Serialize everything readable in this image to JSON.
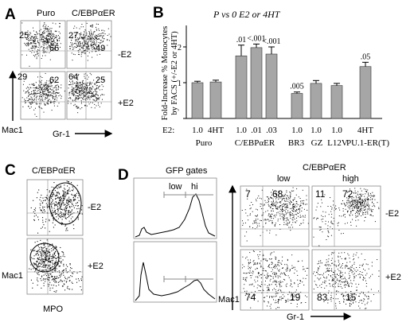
{
  "panels": {
    "A": {
      "letter": "A",
      "col_labels": [
        "Puro",
        "C/EBPαER"
      ],
      "row_labels": [
        "-E2",
        "+E2"
      ],
      "x_axis_label": "Gr-1",
      "y_axis_label": "Mac1",
      "quadrant_values": [
        {
          "tl": "25",
          "tr": "66"
        },
        {
          "tl": "27",
          "tr": "49"
        },
        {
          "tl": "29",
          "tr": "62"
        },
        {
          "tl": "64",
          "tr": "25"
        }
      ]
    },
    "B": {
      "letter": "B",
      "annotation": "P vs 0 E2 or 4HT",
      "ylabel_line1": "Fold-Increase % Monocytes",
      "ylabel_line2": "by FACS (+/-E2 or 4HT)",
      "row_label": "E2:",
      "group_labels": [
        "Puro",
        "C/EBPαER",
        "BR3",
        "GZ",
        "L12V",
        "PU.1-ER(T)"
      ]
    },
    "C": {
      "letter": "C",
      "title": "C/EBPαER",
      "row_labels": [
        "-E2",
        "+E2"
      ],
      "x_axis_label": "MPO",
      "y_axis_label": "Mac1"
    },
    "D": {
      "letter": "D",
      "gfp_title": "GFP gates",
      "gate_low": "low",
      "gate_hi": "hi",
      "scatter_title": "C/EBPαER",
      "col_labels": [
        "low",
        "high"
      ],
      "row_labels": [
        "-E2",
        "+E2"
      ],
      "x_axis_label": "Gr-1",
      "y_axis_label": "Mac1",
      "quadrant_values": [
        {
          "tl": "7",
          "tr": "68"
        },
        {
          "tl": "11",
          "tr": "72"
        },
        {
          "tl": "74",
          "tr": "19"
        },
        {
          "tl": "83",
          "tr": "15"
        }
      ]
    }
  },
  "chart_data": [
    {
      "type": "bar",
      "panel": "B",
      "categories": [
        "1.0",
        "4HT",
        "1.0",
        ".01",
        ".03",
        "1.0",
        "1.0",
        "1.0",
        "4HT"
      ],
      "y_tick_labels": [
        "0",
        "1",
        "2"
      ],
      "ylim": [
        0,
        2.6
      ],
      "grid": false,
      "series": [
        {
          "values": [
            1.0,
            1.02,
            1.75,
            1.98,
            1.8,
            0.7,
            0.98,
            0.92,
            1.45
          ],
          "errors": [
            0.04,
            0.05,
            0.3,
            0.1,
            0.2,
            0.04,
            0.08,
            0.06,
            0.12
          ],
          "pvalues": [
            "",
            "",
            ".01",
            "<.001",
            "<.001",
            ".005",
            "",
            "",
            ".05"
          ]
        }
      ]
    }
  ]
}
